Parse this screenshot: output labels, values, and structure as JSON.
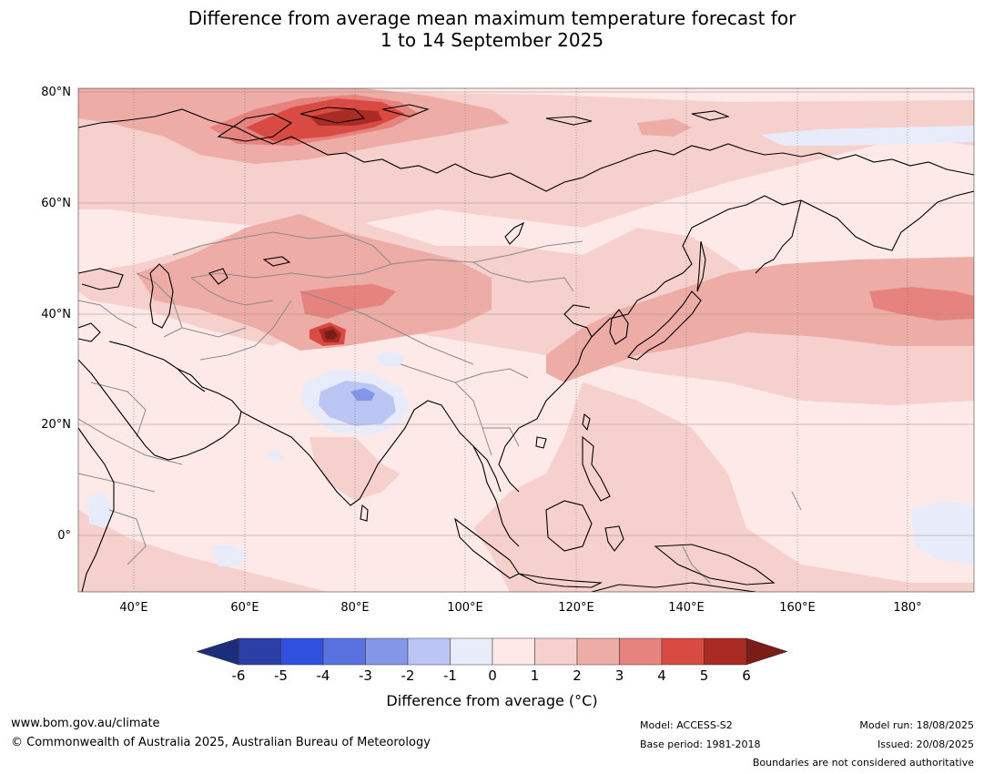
{
  "title_line1": "Difference from average mean maximum temperature forecast for",
  "title_line2": "1 to 14 September 2025",
  "lat_ticks": [
    "80°N",
    "60°N",
    "40°N",
    "20°N",
    "0°"
  ],
  "lon_ticks": [
    "40°E",
    "60°E",
    "80°E",
    "100°E",
    "120°E",
    "140°E",
    "160°E",
    "180°"
  ],
  "colorbar": {
    "ticks": [
      "-6",
      "-5",
      "-4",
      "-3",
      "-2",
      "-1",
      "0",
      "1",
      "2",
      "3",
      "4",
      "5",
      "6"
    ],
    "colors": [
      "#2a3ea6",
      "#3050e0",
      "#5a72e0",
      "#8496e8",
      "#bcc6f4",
      "#e8ecfa",
      "#fdeae8",
      "#f6d0cc",
      "#eeaca6",
      "#e6837e",
      "#d84a42",
      "#aa2a24"
    ],
    "under_color": "#1c2d7a",
    "over_color": "#7a1c18",
    "label": "Difference from average (°C)"
  },
  "footer": {
    "url": "www.bom.gov.au/climate",
    "copyright": "© Commonwealth of Australia 2025, Australian Bureau of Meteorology",
    "model": "Model: ACCESS-S2",
    "base_period": "Base period: 1981-2018",
    "model_run": "Model run: 18/08/2025",
    "issued": "Issued: 20/08/2025",
    "disclaimer": "Boundaries are not considered authoritative"
  }
}
